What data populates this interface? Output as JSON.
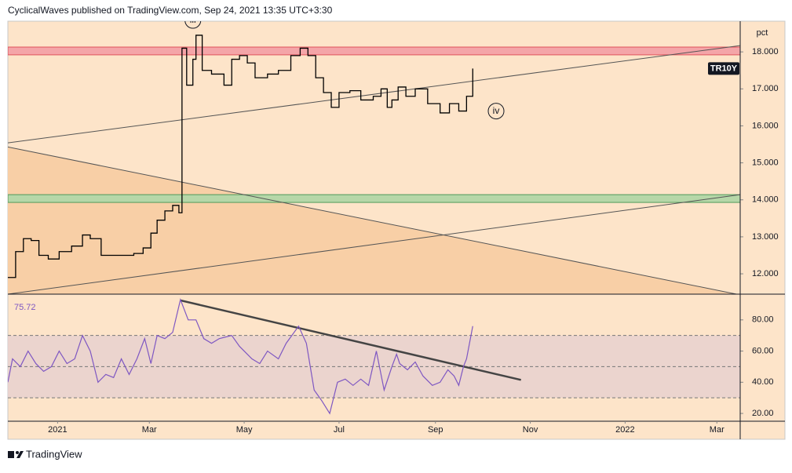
{
  "header": {
    "text": "CyclicalWaves published on TradingView.com, Sep 24, 2021 13:35 UTC+3:30"
  },
  "footer": {
    "brand": "TradingView"
  },
  "chart_data": [
    {
      "type": "line",
      "unit_label": "pct",
      "last_label": "TR10Y",
      "xlim": [
        -32,
        439
      ],
      "ylim": [
        11.45,
        18.83
      ],
      "yticks": [
        {
          "value": 12,
          "label": "12.000"
        },
        {
          "value": 13,
          "label": "13.000"
        },
        {
          "value": 14,
          "label": "14.000"
        },
        {
          "value": 15,
          "label": "15.000"
        },
        {
          "value": 16,
          "label": "16.000"
        },
        {
          "value": 17,
          "label": "17.000"
        },
        {
          "value": 18,
          "label": "18.000"
        }
      ],
      "x": [
        -32,
        -27,
        -22,
        -17,
        -12,
        -6,
        1,
        9,
        16,
        21,
        28,
        34,
        41,
        49,
        55,
        60,
        64,
        69,
        74,
        78,
        80,
        83,
        87,
        89,
        93,
        99,
        107,
        112,
        117,
        122,
        127,
        135,
        142,
        150,
        156,
        161,
        166,
        171,
        176,
        181,
        188,
        195,
        203,
        208,
        212,
        215,
        219,
        224,
        230,
        238,
        246,
        252,
        258,
        263,
        267
      ],
      "series": [
        {
          "color": "#000000",
          "values": [
            11.9,
            12.6,
            12.95,
            12.9,
            12.5,
            12.4,
            12.6,
            12.75,
            13.05,
            12.95,
            12.5,
            12.5,
            12.5,
            12.55,
            12.7,
            13.1,
            13.45,
            13.7,
            13.85,
            13.65,
            18.1,
            17.1,
            17.8,
            18.45,
            17.5,
            17.4,
            17.1,
            17.8,
            17.9,
            17.7,
            17.3,
            17.4,
            17.5,
            17.9,
            18.1,
            17.9,
            17.3,
            16.9,
            16.5,
            16.9,
            16.95,
            16.7,
            16.8,
            17.0,
            16.5,
            16.7,
            17.05,
            16.8,
            17.0,
            16.6,
            16.35,
            16.6,
            16.4,
            16.8,
            17.55
          ]
        }
      ],
      "bands": [
        {
          "from": 17.92,
          "to": 18.13,
          "color": "#f4a5a8",
          "edge": "#e0525a"
        },
        {
          "from": 13.93,
          "to": 14.14,
          "color": "#b6d7a8",
          "edge": "#4f9a5a"
        }
      ],
      "trendlines": [
        {
          "x": [
            -32,
            439
          ],
          "y": [
            15.54,
            18.17
          ],
          "color": "#555555"
        },
        {
          "x": [
            -32,
            439
          ],
          "y": [
            11.45,
            14.14
          ],
          "color": "#555555"
        },
        {
          "x": [
            -32,
            439
          ],
          "y": [
            15.43,
            11.43
          ],
          "color": "#555555",
          "shade_below": "#f8cfa6"
        }
      ],
      "annotations": [
        {
          "text": "iv",
          "x": 282,
          "y": 16.4
        },
        {
          "text": "iii",
          "x": 87,
          "y": 18.85
        }
      ]
    },
    {
      "type": "line",
      "last_value_label": "75.72",
      "xlim": [
        -32,
        439
      ],
      "ylim": [
        15,
        95.5
      ],
      "yticks": [
        {
          "value": 20,
          "label": "20.00"
        },
        {
          "value": 40,
          "label": "40.00"
        },
        {
          "value": 60,
          "label": "60.00"
        },
        {
          "value": 80,
          "label": "80.00"
        }
      ],
      "xticks": [
        {
          "value": 0,
          "label": "2021"
        },
        {
          "value": 59,
          "label": "Mar"
        },
        {
          "value": 120,
          "label": "May"
        },
        {
          "value": 181,
          "label": "Jul"
        },
        {
          "value": 243,
          "label": "Sep"
        },
        {
          "value": 304,
          "label": "Nov"
        },
        {
          "value": 365,
          "label": "2022"
        },
        {
          "value": 424,
          "label": "Mar"
        }
      ],
      "levels": [
        70,
        50,
        30
      ],
      "band": [
        30,
        70
      ],
      "x": [
        -32,
        -29,
        -24,
        -19,
        -14,
        -9,
        -4,
        1,
        6,
        11,
        16,
        21,
        26,
        31,
        36,
        41,
        46,
        51,
        56,
        60,
        64,
        69,
        74,
        79,
        84,
        89,
        94,
        99,
        104,
        112,
        117,
        125,
        130,
        135,
        142,
        147,
        155,
        160,
        165,
        170,
        175,
        180,
        185,
        190,
        195,
        200,
        205,
        210,
        215,
        218,
        220,
        225,
        230,
        235,
        241,
        246,
        251,
        255,
        258,
        261,
        263,
        267
      ],
      "series": [
        {
          "color": "#7e57c2",
          "values": [
            40,
            55,
            50,
            60,
            52,
            47,
            50,
            60,
            52,
            55,
            70,
            60,
            40,
            45,
            43,
            55,
            45,
            55,
            68,
            52,
            70,
            68,
            72,
            93,
            80,
            80,
            68,
            65,
            68,
            70,
            63,
            55,
            52,
            60,
            55,
            65,
            76,
            65,
            35,
            28,
            20,
            40,
            42,
            38,
            42,
            38,
            60,
            35,
            50,
            58,
            52,
            48,
            53,
            44,
            38,
            40,
            48,
            44,
            38,
            50,
            55,
            76
          ]
        }
      ],
      "trendlines": [
        {
          "x": [
            79,
            298
          ],
          "y": [
            92.5,
            41.5
          ],
          "color": "#444444"
        }
      ]
    }
  ]
}
